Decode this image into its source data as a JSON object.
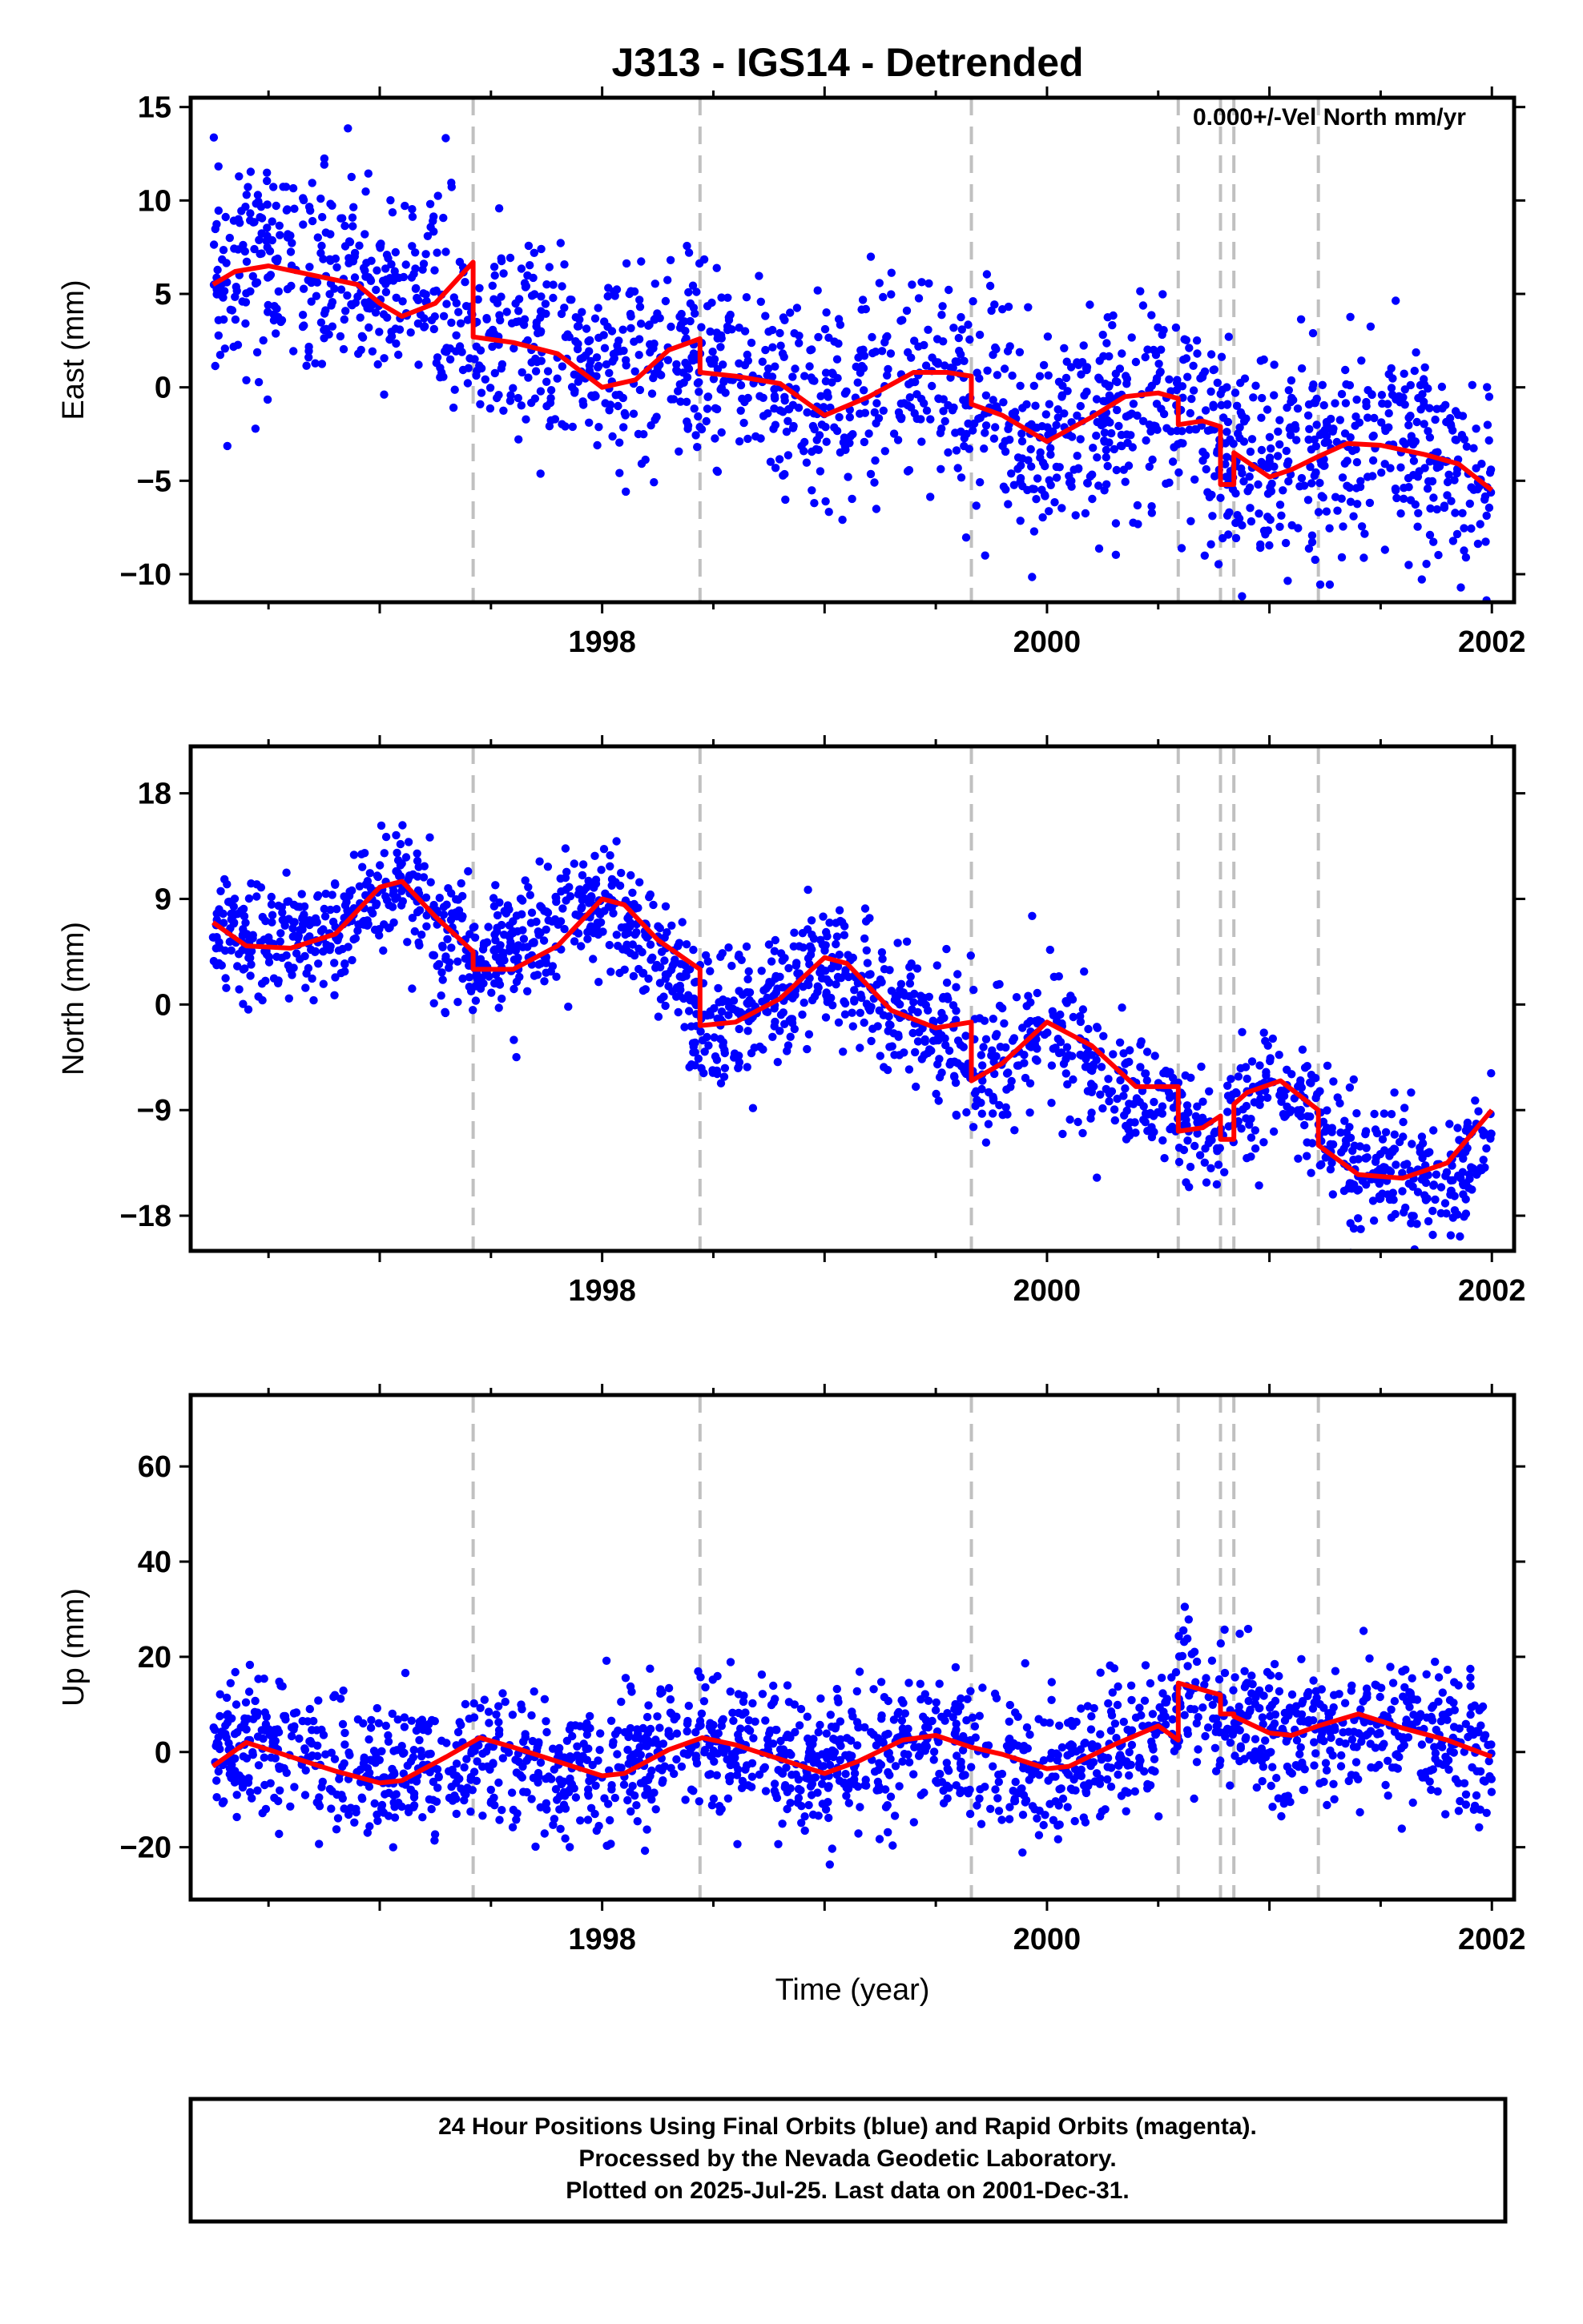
{
  "chart_data": [
    {
      "type": "scatter",
      "title": "J313 - IGS14 - Detrended",
      "annotation": "0.000+/-Vel North mm/yr",
      "xlabel": "",
      "ylabel": "East (mm)",
      "xlim": [
        1996.15,
        2002.1
      ],
      "ylim": [
        -11.5,
        15.5
      ],
      "yticks": [
        -10,
        -5,
        0,
        5,
        10,
        15
      ],
      "xticks": [
        1998,
        2000,
        2002
      ],
      "grid": false,
      "steps": [
        1997.42,
        1998.44,
        1999.66,
        2000.59,
        2000.78,
        2000.84,
        2001.22
      ],
      "series": [
        {
          "name": "",
          "type": "scatter",
          "color": "#0000ff",
          "x": [
            1996.25,
            1996.5,
            1996.75,
            1997.0,
            1997.25,
            1997.42,
            1997.5,
            1997.75,
            1998.0,
            1998.25,
            1998.44,
            1998.5,
            1998.75,
            1999.0,
            1999.25,
            1999.5,
            1999.66,
            1999.75,
            2000.0,
            2000.25,
            2000.5,
            2000.59,
            2000.7,
            2000.78,
            2000.84,
            2001.0,
            2001.22,
            2001.5,
            2001.75,
            2002.0
          ],
          "y": [
            6.0,
            7.0,
            6.0,
            5.0,
            5.5,
            3.0,
            2.5,
            2.0,
            0.5,
            1.5,
            1.0,
            0.5,
            0.0,
            -1.0,
            0.5,
            0.5,
            -0.5,
            -1.5,
            -2.5,
            -1.5,
            -0.5,
            -2.0,
            -2.5,
            -3.0,
            -4.0,
            -4.5,
            -3.5,
            -3.0,
            -3.5,
            -6.0
          ],
          "spread": 3.0
        },
        {
          "name": "",
          "type": "line",
          "color": "#ff0000",
          "x": [
            1996.25,
            1996.35,
            1996.5,
            1996.7,
            1996.9,
            1997.0,
            1997.1,
            1997.25,
            1997.42,
            1997.42,
            1997.6,
            1997.8,
            1998.0,
            1998.15,
            1998.3,
            1998.44,
            1998.44,
            1998.6,
            1998.8,
            1999.0,
            1999.2,
            1999.4,
            1999.55,
            1999.66,
            1999.66,
            1999.8,
            2000.0,
            2000.2,
            2000.35,
            2000.5,
            2000.59,
            2000.59,
            2000.7,
            2000.78,
            2000.78,
            2000.84,
            2000.84,
            2001.0,
            2001.1,
            2001.22,
            2001.35,
            2001.5,
            2001.7,
            2001.85,
            2002.0
          ],
          "y": [
            5.5,
            6.2,
            6.5,
            6.0,
            5.5,
            4.5,
            3.8,
            4.5,
            6.7,
            2.7,
            2.4,
            1.8,
            0.0,
            0.4,
            2.0,
            2.6,
            0.8,
            0.6,
            0.2,
            -1.5,
            -0.5,
            0.8,
            0.8,
            0.6,
            -0.9,
            -1.5,
            -2.9,
            -1.6,
            -0.5,
            -0.3,
            -0.6,
            -2.0,
            -1.8,
            -2.1,
            -5.2,
            -5.2,
            -3.5,
            -4.8,
            -4.4,
            -3.7,
            -3.0,
            -3.1,
            -3.6,
            -4.1,
            -5.5
          ]
        }
      ]
    },
    {
      "type": "scatter",
      "title": "",
      "xlabel": "",
      "ylabel": "North (mm)",
      "xlim": [
        1996.15,
        2002.1
      ],
      "ylim": [
        -21,
        22
      ],
      "yticks": [
        -18,
        -9,
        0,
        9,
        18
      ],
      "xticks": [
        1998,
        2000,
        2002
      ],
      "grid": false,
      "steps": [
        1997.42,
        1998.44,
        1999.66,
        2000.59,
        2000.78,
        2000.84,
        2001.22
      ],
      "series": [
        {
          "name": "",
          "type": "scatter",
          "color": "#0000ff",
          "x": [
            1996.25,
            1996.5,
            1996.75,
            1997.0,
            1997.1,
            1997.25,
            1997.42,
            1997.6,
            1997.85,
            1998.0,
            1998.25,
            1998.44,
            1998.6,
            1998.8,
            1999.0,
            1999.25,
            1999.5,
            1999.66,
            1999.8,
            2000.0,
            2000.2,
            2000.4,
            2000.59,
            2000.7,
            2000.78,
            2000.84,
            2001.0,
            2001.22,
            2001.4,
            2001.6,
            2001.8,
            2002.0
          ],
          "y": [
            7.0,
            5.0,
            5.5,
            9.5,
            11.0,
            7.0,
            3.5,
            4.5,
            7.0,
            8.5,
            4.5,
            -1.0,
            -1.5,
            0.5,
            4.0,
            0.5,
            -3.0,
            -5.5,
            -5.0,
            -1.5,
            -5.5,
            -8.0,
            -9.0,
            -10.5,
            -11.0,
            -9.0,
            -6.5,
            -10.0,
            -13.5,
            -14.5,
            -15.0,
            -11.5
          ],
          "spread": 3.0
        },
        {
          "name": "",
          "type": "line",
          "color": "#ff0000",
          "x": [
            1996.25,
            1996.4,
            1996.6,
            1996.8,
            1997.0,
            1997.1,
            1997.25,
            1997.42,
            1997.42,
            1997.6,
            1997.8,
            1998.0,
            1998.1,
            1998.25,
            1998.44,
            1998.44,
            1998.6,
            1998.8,
            1999.0,
            1999.1,
            1999.3,
            1999.5,
            1999.66,
            1999.66,
            1999.8,
            2000.0,
            2000.2,
            2000.4,
            2000.59,
            2000.59,
            2000.7,
            2000.78,
            2000.78,
            2000.84,
            2000.84,
            2000.9,
            2001.05,
            2001.22,
            2001.22,
            2001.4,
            2001.6,
            2001.8,
            2002.0
          ],
          "y": [
            7.0,
            5.0,
            4.8,
            6.0,
            10.0,
            10.5,
            7.5,
            4.5,
            3.0,
            3.0,
            5.0,
            9.0,
            8.5,
            5.5,
            3.0,
            -1.8,
            -1.5,
            0.5,
            4.0,
            3.5,
            -0.5,
            -2.0,
            -1.5,
            -6.5,
            -5.0,
            -1.5,
            -3.5,
            -7.0,
            -7.0,
            -10.8,
            -10.5,
            -9.5,
            -11.5,
            -11.5,
            -8.5,
            -7.5,
            -6.5,
            -9.0,
            -12.0,
            -14.5,
            -14.8,
            -13.5,
            -9.0
          ]
        }
      ]
    },
    {
      "type": "scatter",
      "title": "",
      "xlabel": "Time (year)",
      "ylabel": "Up (mm)",
      "xlim": [
        1996.15,
        2002.1
      ],
      "ylim": [
        -31,
        75
      ],
      "yticks": [
        -20,
        0,
        20,
        40,
        60
      ],
      "xticks": [
        1998,
        2000,
        2002
      ],
      "grid": false,
      "steps": [
        1997.42,
        1998.44,
        1999.66,
        2000.59,
        2000.78,
        2000.84,
        2001.22
      ],
      "series": [
        {
          "name": "",
          "type": "scatter",
          "color": "#0000ff",
          "x": [
            1996.25,
            1996.5,
            1996.75,
            1997.0,
            1997.25,
            1997.5,
            1997.75,
            1998.0,
            1998.25,
            1998.5,
            1998.75,
            1999.0,
            1999.25,
            1999.5,
            1999.75,
            2000.0,
            2000.25,
            2000.5,
            2000.59,
            2000.7,
            2000.84,
            2001.0,
            2001.22,
            2001.5,
            2001.75,
            2002.0
          ],
          "y": [
            0.0,
            2.0,
            -2.0,
            -5.0,
            -2.0,
            0.0,
            -3.0,
            -5.0,
            0.0,
            1.0,
            -2.0,
            -4.0,
            0.0,
            1.0,
            -1.0,
            -4.0,
            -1.0,
            3.0,
            12.0,
            11.0,
            8.0,
            3.0,
            5.0,
            6.0,
            3.0,
            0.0
          ],
          "spread": 8.0
        },
        {
          "name": "",
          "type": "line",
          "color": "#ff0000",
          "x": [
            1996.25,
            1996.4,
            1996.6,
            1996.8,
            1997.0,
            1997.1,
            1997.3,
            1997.45,
            1997.6,
            1997.8,
            1998.0,
            1998.1,
            1998.3,
            1998.45,
            1998.6,
            1998.8,
            1999.0,
            1999.15,
            1999.35,
            1999.5,
            1999.66,
            1999.8,
            2000.0,
            2000.1,
            2000.3,
            2000.5,
            2000.59,
            2000.59,
            2000.78,
            2000.78,
            2000.84,
            2000.84,
            2001.0,
            2001.1,
            2001.22,
            2001.4,
            2001.6,
            2001.8,
            2002.0
          ],
          "y": [
            -3.0,
            2.0,
            -1.0,
            -4.0,
            -6.5,
            -6.0,
            -1.0,
            3.0,
            1.0,
            -2.0,
            -5.0,
            -4.5,
            0.5,
            3.0,
            1.5,
            -1.5,
            -4.5,
            -2.0,
            2.5,
            3.5,
            1.0,
            -0.5,
            -3.5,
            -3.0,
            1.5,
            5.5,
            2.5,
            14.5,
            12.0,
            8.0,
            8.0,
            7.5,
            4.0,
            3.5,
            5.5,
            8.0,
            5.0,
            2.5,
            -1.0
          ]
        }
      ]
    }
  ],
  "footer": {
    "line1": "24 Hour Positions Using Final Orbits (blue) and Rapid Orbits (magenta).",
    "line2": "Processed by the Nevada Geodetic Laboratory.",
    "line3": "Plotted on 2025-Jul-25. Last data on 2001-Dec-31."
  }
}
